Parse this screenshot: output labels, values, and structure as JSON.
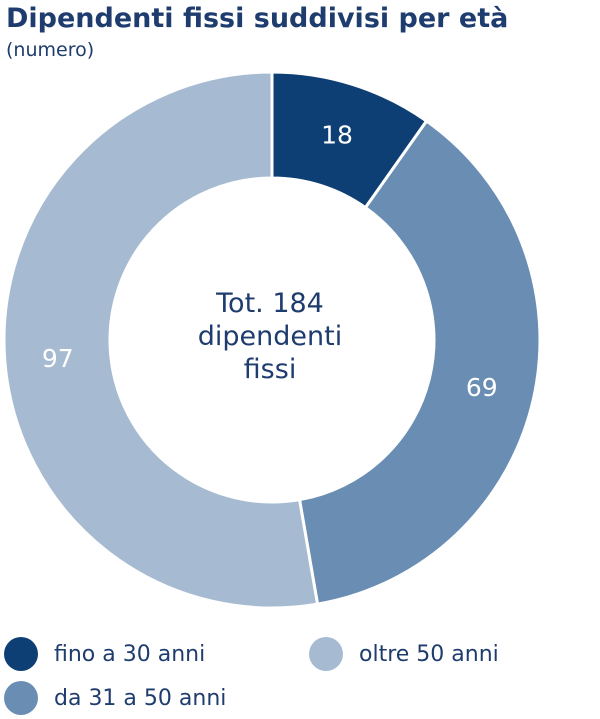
{
  "chart_data": {
    "type": "pie",
    "title": "Dipendenti fissi suddivisi per età",
    "subtitle": "(numero)",
    "center_label": [
      "Tot. 184",
      "dipendenti",
      "fissi"
    ],
    "slices": [
      {
        "label": "fino a 30 anni",
        "value": 18,
        "color": "#0e3f74"
      },
      {
        "label": "da 31 a 50 anni",
        "value": 69,
        "color": "#6a8eb3"
      },
      {
        "label": "oltre 50 anni",
        "value": 97,
        "color": "#a6bbd1"
      }
    ],
    "legend_placement": "bottom",
    "label_colors": {
      "dark": "#ffffff"
    }
  }
}
